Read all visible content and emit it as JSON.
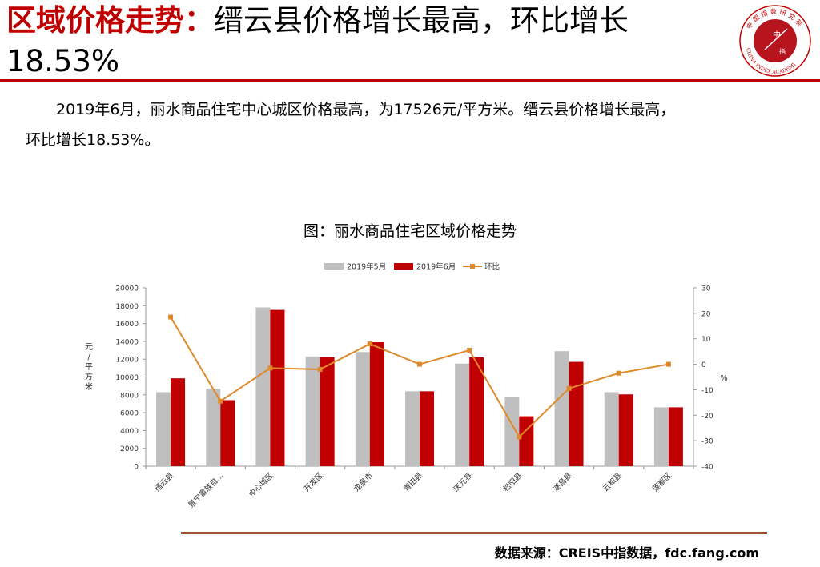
{
  "header": {
    "title_red": "区域价格走势：",
    "title_black": "缙云县价格增长最高，环比增长",
    "title_line2": "18.53%"
  },
  "logo": {
    "center_top": "中",
    "center_bottom": "指",
    "ring_text": "CHINA INDEX ACADEMY",
    "ring_cn": "中国指数研究院"
  },
  "body": {
    "paragraph": "2019年6月，丽水商品住宅中心城区价格最高，为17526元/平方米。缙云县价格增长最高，环比增长18.53%。",
    "line1": "2019年6月，丽水商品住宅中心城区价格最高，为17526元/平方米。缙云县价格增长最高，",
    "line2": "环比增长18.53%。"
  },
  "chart_caption": "图：丽水商品住宅区域价格走势",
  "source": "数据来源：CREIS中指数据，fdc.fang.com",
  "colors": {
    "accent_red": "#c00000",
    "bar_may": "#bfbfbf",
    "bar_june": "#c00000",
    "line_mom": "#e0892a",
    "footer_line": "#a0522d"
  },
  "chart_data": {
    "type": "bar",
    "categories": [
      "缙云县",
      "景宁畲族自…",
      "中心城区",
      "开发区",
      "龙泉市",
      "青田县",
      "庆元县",
      "松阳县",
      "遂昌县",
      "云和县",
      "莲都区"
    ],
    "series": [
      {
        "name": "2019年5月",
        "type": "bar",
        "axis": "left",
        "values": [
          8300,
          8700,
          17800,
          12300,
          12800,
          8400,
          11500,
          7800,
          12900,
          8300,
          6600
        ]
      },
      {
        "name": "2019年6月",
        "type": "bar",
        "axis": "left",
        "values": [
          9850,
          7400,
          17526,
          12200,
          13900,
          8400,
          12200,
          5600,
          11700,
          8050,
          6600
        ]
      },
      {
        "name": "环比",
        "type": "line",
        "axis": "right",
        "values": [
          18.53,
          -14.5,
          -1.5,
          -2,
          8,
          0,
          5.5,
          -28.5,
          -9.5,
          -3.5,
          0
        ]
      }
    ],
    "ylabel_left": "元/平方米",
    "ylabel_right": "%",
    "ylim_left": [
      0,
      20000
    ],
    "yticks_left": [
      0,
      2000,
      4000,
      6000,
      8000,
      10000,
      12000,
      14000,
      16000,
      18000,
      20000
    ],
    "ylim_right": [
      -40,
      30
    ],
    "yticks_right": [
      -40,
      -30,
      -20,
      -10,
      0,
      10,
      20,
      30
    ],
    "legend": "top",
    "grid": false
  }
}
